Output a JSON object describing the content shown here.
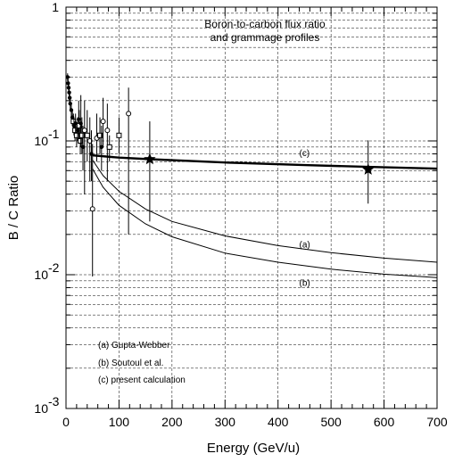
{
  "chart_data": {
    "type": "line",
    "title_lines": [
      "Boron-to-carbon flux ratio",
      "and grammage profiles"
    ],
    "xlabel": "Energy (GeV/u)",
    "ylabel": "B / C Ratio",
    "xlim": [
      0,
      700
    ],
    "ylim": [
      0.001,
      1
    ],
    "yscale": "log",
    "grid": true,
    "x_ticks": [
      0,
      100,
      200,
      300,
      400,
      500,
      600,
      700
    ],
    "y_ticks": [
      {
        "value": 0.001,
        "base": "10",
        "exp": "-3"
      },
      {
        "value": 0.01,
        "base": "10",
        "exp": "-2"
      },
      {
        "value": 0.1,
        "base": "10",
        "exp": "-1"
      },
      {
        "value": 1,
        "base": "1",
        "exp": ""
      }
    ],
    "series": [
      {
        "label": "(a)",
        "x": [
          50,
          70,
          100,
          150,
          200,
          300,
          400,
          500,
          600,
          700
        ],
        "y": [
          0.072,
          0.055,
          0.042,
          0.031,
          0.025,
          0.0195,
          0.0165,
          0.0146,
          0.0133,
          0.0124
        ],
        "label_at": [
          440,
          0.017
        ]
      },
      {
        "label": "(b)",
        "x": [
          50,
          70,
          100,
          150,
          200,
          300,
          400,
          500,
          600,
          700
        ],
        "y": [
          0.062,
          0.045,
          0.033,
          0.024,
          0.0192,
          0.0145,
          0.0124,
          0.011,
          0.0101,
          0.0095
        ],
        "label_at": [
          440,
          0.0088
        ]
      },
      {
        "label": "(c)",
        "x": [
          50,
          100,
          158,
          300,
          450,
          570,
          700
        ],
        "y": [
          0.078,
          0.075,
          0.073,
          0.069,
          0.066,
          0.064,
          0.062
        ],
        "label_at": [
          440,
          0.082
        ],
        "bold": true
      }
    ],
    "star_points": [
      {
        "x": 158,
        "y": 0.073,
        "ylow": 0.025,
        "yhigh": 0.14
      },
      {
        "x": 570,
        "y": 0.061,
        "ylow": 0.034,
        "yhigh": 0.101
      }
    ],
    "data_points": [
      {
        "x": 3,
        "y": 0.3,
        "ylow": 0.28,
        "yhigh": 0.32,
        "marker": "filled"
      },
      {
        "x": 4,
        "y": 0.27,
        "ylow": 0.25,
        "yhigh": 0.29,
        "marker": "filled"
      },
      {
        "x": 5,
        "y": 0.25,
        "ylow": 0.23,
        "yhigh": 0.27,
        "marker": "filled"
      },
      {
        "x": 6,
        "y": 0.23,
        "ylow": 0.21,
        "yhigh": 0.25,
        "marker": "filled"
      },
      {
        "x": 7,
        "y": 0.21,
        "ylow": 0.19,
        "yhigh": 0.23,
        "marker": "filled"
      },
      {
        "x": 8,
        "y": 0.19,
        "ylow": 0.17,
        "yhigh": 0.21,
        "marker": "filled"
      },
      {
        "x": 10,
        "y": 0.17,
        "ylow": 0.15,
        "yhigh": 0.19,
        "marker": "filled"
      },
      {
        "x": 12,
        "y": 0.15,
        "ylow": 0.13,
        "yhigh": 0.17,
        "marker": "filled"
      },
      {
        "x": 14,
        "y": 0.14,
        "ylow": 0.12,
        "yhigh": 0.16,
        "marker": "open-square"
      },
      {
        "x": 15,
        "y": 0.13,
        "ylow": 0.11,
        "yhigh": 0.15,
        "marker": "filled"
      },
      {
        "x": 17,
        "y": 0.12,
        "ylow": 0.1,
        "yhigh": 0.14,
        "marker": "open-square"
      },
      {
        "x": 18,
        "y": 0.135,
        "ylow": 0.11,
        "yhigh": 0.16,
        "marker": "filled"
      },
      {
        "x": 20,
        "y": 0.11,
        "ylow": 0.09,
        "yhigh": 0.13,
        "marker": "open-square"
      },
      {
        "x": 22,
        "y": 0.12,
        "ylow": 0.1,
        "yhigh": 0.15,
        "marker": "filled"
      },
      {
        "x": 24,
        "y": 0.145,
        "ylow": 0.11,
        "yhigh": 0.2,
        "marker": "filled"
      },
      {
        "x": 25,
        "y": 0.13,
        "ylow": 0.1,
        "yhigh": 0.17,
        "marker": "open-square"
      },
      {
        "x": 27,
        "y": 0.1,
        "ylow": 0.08,
        "yhigh": 0.13,
        "marker": "open-square"
      },
      {
        "x": 28,
        "y": 0.135,
        "ylow": 0.09,
        "yhigh": 0.22,
        "marker": "filled"
      },
      {
        "x": 30,
        "y": 0.11,
        "ylow": 0.08,
        "yhigh": 0.15,
        "marker": "open-square"
      },
      {
        "x": 32,
        "y": 0.09,
        "ylow": 0.06,
        "yhigh": 0.13,
        "marker": "filled"
      },
      {
        "x": 35,
        "y": 0.12,
        "ylow": 0.04,
        "yhigh": 0.2,
        "marker": "open-circle"
      },
      {
        "x": 40,
        "y": 0.11,
        "ylow": 0.07,
        "yhigh": 0.17,
        "marker": "open-square"
      },
      {
        "x": 45,
        "y": 0.1,
        "ylow": 0.05,
        "yhigh": 0.15,
        "marker": "open-circle"
      },
      {
        "x": 48,
        "y": 0.08,
        "ylow": 0.05,
        "yhigh": 0.12,
        "marker": "filled"
      },
      {
        "x": 50,
        "y": 0.031,
        "ylow": 0.0097,
        "yhigh": 0.095,
        "marker": "open-circle"
      },
      {
        "x": 58,
        "y": 0.105,
        "ylow": 0.07,
        "yhigh": 0.16,
        "marker": "open-circle"
      },
      {
        "x": 64,
        "y": 0.11,
        "ylow": 0.08,
        "yhigh": 0.15,
        "marker": "open-square"
      },
      {
        "x": 67,
        "y": 0.09,
        "ylow": 0.06,
        "yhigh": 0.13,
        "marker": "filled"
      },
      {
        "x": 70,
        "y": 0.14,
        "ylow": 0.09,
        "yhigh": 0.21,
        "marker": "open-circle"
      },
      {
        "x": 78,
        "y": 0.12,
        "ylow": 0.05,
        "yhigh": 0.19,
        "marker": "open-circle"
      },
      {
        "x": 82,
        "y": 0.09,
        "ylow": 0.07,
        "yhigh": 0.11,
        "marker": "open-square"
      },
      {
        "x": 100,
        "y": 0.11,
        "ylow": 0.08,
        "yhigh": 0.15,
        "marker": "open-square"
      },
      {
        "x": 118,
        "y": 0.16,
        "ylow": 0.02,
        "yhigh": 0.25,
        "marker": "open-circle"
      }
    ],
    "legend": [
      "(a)  Gupta-Webber",
      "(b)  Soutoul et al.",
      "(c)  present calculation"
    ]
  }
}
